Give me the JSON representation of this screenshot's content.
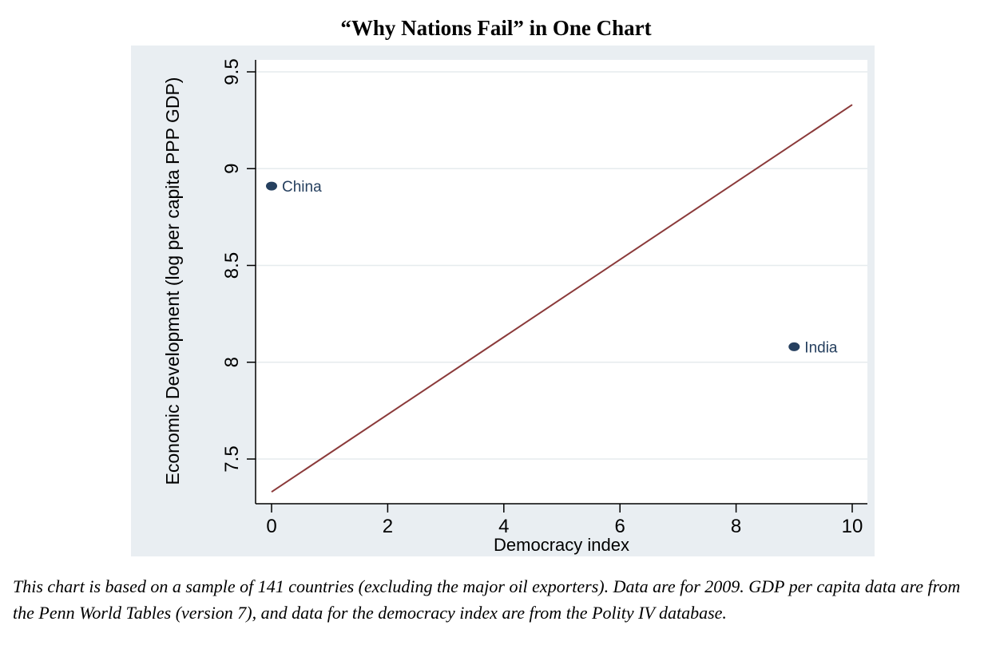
{
  "title": "“Why Nations Fail” in One Chart",
  "caption": "This chart is based on a sample of 141 countries (excluding the major oil exporters). Data are for 2009.  GDP per capita data are from the Penn World Tables (version 7), and data for the democracy index are from the Polity IV database.",
  "colors": {
    "panel_bg": "#e9eef2",
    "plot_bg": "#ffffff",
    "fit_line": "#8b3a3a",
    "points": "#26405f",
    "point_labels": "#26405f",
    "grid": "#e6ebee"
  },
  "chart_data": {
    "type": "scatter",
    "xlabel": "Democracy index",
    "ylabel": "Economic Development (log per capita PPP GDP)",
    "xlim": [
      0,
      10
    ],
    "ylim": [
      7.3,
      9.5
    ],
    "xticks": [
      "0",
      "2",
      "4",
      "6",
      "8",
      "10"
    ],
    "yticks": [
      "7.5",
      "8",
      "8.5",
      "9",
      "9.5"
    ],
    "grid": true,
    "points": [
      {
        "label": "China",
        "x": 0,
        "y": 8.91
      },
      {
        "label": "India",
        "x": 9,
        "y": 8.08
      }
    ],
    "fit_line": {
      "x": [
        0,
        10
      ],
      "y": [
        7.33,
        9.33
      ]
    }
  }
}
